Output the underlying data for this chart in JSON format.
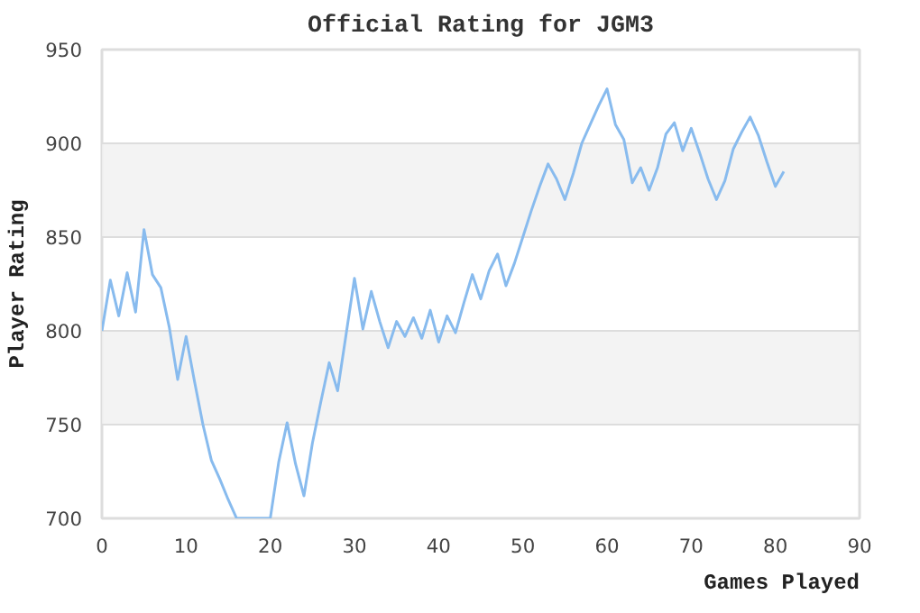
{
  "chart_data": {
    "type": "line",
    "title": "Official Rating for JGM3",
    "xlabel": "Games Played",
    "ylabel": "Player Rating",
    "x": [
      0,
      1,
      2,
      3,
      4,
      5,
      6,
      7,
      8,
      9,
      10,
      11,
      12,
      13,
      14,
      15,
      16,
      17,
      18,
      19,
      20,
      21,
      22,
      23,
      24,
      25,
      26,
      27,
      28,
      29,
      30,
      31,
      32,
      33,
      34,
      35,
      36,
      37,
      38,
      39,
      40,
      41,
      42,
      43,
      44,
      45,
      46,
      47,
      48,
      49,
      50,
      51,
      52,
      53,
      54,
      55,
      56,
      57,
      58,
      59,
      60,
      61,
      62,
      63,
      64,
      65,
      66,
      67,
      68,
      69,
      70,
      71,
      72,
      73,
      74,
      75,
      76,
      77,
      78,
      79,
      80,
      81
    ],
    "series": [
      {
        "color": "#88bbee",
        "values": [
          800,
          827,
          808,
          831,
          810,
          854,
          830,
          823,
          802,
          774,
          797,
          773,
          750,
          731,
          721,
          710,
          700,
          700,
          700,
          700,
          700,
          730,
          751,
          729,
          712,
          740,
          762,
          783,
          768,
          798,
          828,
          801,
          821,
          805,
          791,
          805,
          797,
          807,
          796,
          811,
          794,
          808,
          799,
          815,
          830,
          817,
          832,
          841,
          824,
          836,
          850,
          864,
          877,
          889,
          881,
          870,
          884,
          900,
          910,
          920,
          929,
          910,
          902,
          879,
          887,
          875,
          887,
          905,
          911,
          896,
          908,
          895,
          881,
          870,
          880,
          897,
          906,
          914,
          904,
          890,
          877,
          885
        ]
      }
    ],
    "xlim": [
      0,
      90
    ],
    "ylim": [
      700,
      950
    ],
    "xticks": [
      0,
      10,
      20,
      30,
      40,
      50,
      60,
      70,
      80,
      90
    ],
    "yticks": [
      700,
      750,
      800,
      850,
      900,
      950
    ],
    "grid": "y",
    "marker": "none",
    "line_style": "solid"
  }
}
